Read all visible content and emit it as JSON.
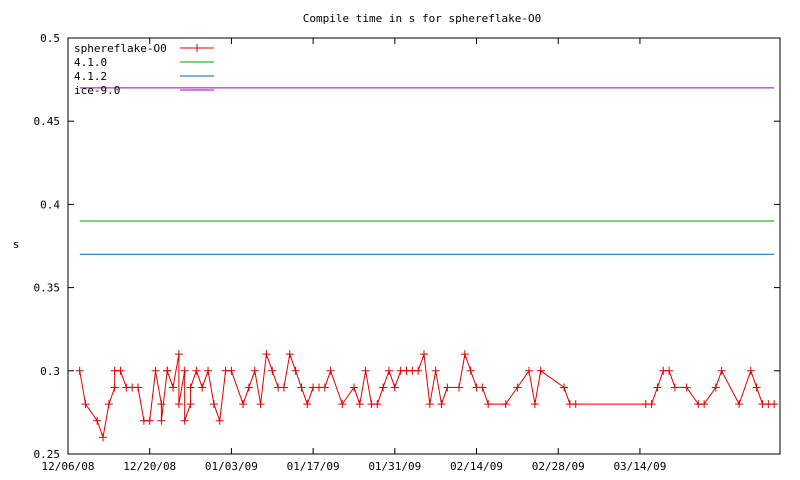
{
  "chart_data": {
    "type": "line",
    "title": "Compile time in s for sphereflake-O0",
    "xlabel": "",
    "ylabel": "s",
    "ylim": [
      0.25,
      0.5
    ],
    "xlim": [
      "2008-12-06",
      "2009-04-07"
    ],
    "x_ticks": [
      "12/06/08",
      "12/20/08",
      "01/03/09",
      "01/17/09",
      "01/31/09",
      "02/14/09",
      "02/28/09",
      "03/14/09"
    ],
    "y_ticks": [
      "0.25",
      "0.3",
      "0.35",
      "0.4",
      "0.45",
      "0.5"
    ],
    "grid": false,
    "legend_position": "top-left",
    "series": [
      {
        "name": "sphereflake-O0",
        "color": "#dd0000",
        "marker": "plus",
        "x": [
          "2008-12-08",
          "2008-12-09",
          "2008-12-11",
          "2008-12-12",
          "2008-12-13",
          "2008-12-14",
          "2008-12-14",
          "2008-12-15",
          "2008-12-16",
          "2008-12-17",
          "2008-12-18",
          "2008-12-19",
          "2008-12-20",
          "2008-12-21",
          "2008-12-22",
          "2008-12-22",
          "2008-12-23",
          "2008-12-23",
          "2008-12-24",
          "2008-12-24",
          "2008-12-25",
          "2008-12-25",
          "2008-12-26",
          "2008-12-26",
          "2008-12-27",
          "2008-12-27",
          "2008-12-28",
          "2008-12-29",
          "2008-12-30",
          "2008-12-31",
          "2009-01-01",
          "2009-01-02",
          "2009-01-03",
          "2009-01-05",
          "2009-01-06",
          "2009-01-07",
          "2009-01-08",
          "2009-01-09",
          "2009-01-10",
          "2009-01-11",
          "2009-01-12",
          "2009-01-13",
          "2009-01-14",
          "2009-01-15",
          "2009-01-16",
          "2009-01-17",
          "2009-01-18",
          "2009-01-19",
          "2009-01-20",
          "2009-01-22",
          "2009-01-24",
          "2009-01-25",
          "2009-01-26",
          "2009-01-27",
          "2009-01-28",
          "2009-01-29",
          "2009-01-30",
          "2009-01-31",
          "2009-02-01",
          "2009-02-02",
          "2009-02-03",
          "2009-02-04",
          "2009-02-05",
          "2009-02-06",
          "2009-02-07",
          "2009-02-08",
          "2009-02-09",
          "2009-02-11",
          "2009-02-12",
          "2009-02-13",
          "2009-02-14",
          "2009-02-15",
          "2009-02-16",
          "2009-02-19",
          "2009-02-21",
          "2009-02-23",
          "2009-02-24",
          "2009-02-25",
          "2009-03-01",
          "2009-03-02",
          "2009-03-03",
          "2009-03-15",
          "2009-03-16",
          "2009-03-17",
          "2009-03-18",
          "2009-03-19",
          "2009-03-20",
          "2009-03-22",
          "2009-03-24",
          "2009-03-25",
          "2009-03-27",
          "2009-03-28",
          "2009-03-31",
          "2009-04-02",
          "2009-04-03",
          "2009-04-04",
          "2009-04-05",
          "2009-04-06"
        ],
        "y": [
          0.3,
          0.28,
          0.27,
          0.26,
          0.28,
          0.29,
          0.3,
          0.3,
          0.29,
          0.29,
          0.29,
          0.27,
          0.27,
          0.3,
          0.28,
          0.27,
          0.3,
          0.3,
          0.29,
          0.29,
          0.31,
          0.28,
          0.3,
          0.27,
          0.28,
          0.29,
          0.3,
          0.29,
          0.3,
          0.28,
          0.27,
          0.3,
          0.3,
          0.28,
          0.29,
          0.3,
          0.28,
          0.31,
          0.3,
          0.29,
          0.29,
          0.31,
          0.3,
          0.29,
          0.28,
          0.29,
          0.29,
          0.29,
          0.3,
          0.28,
          0.29,
          0.28,
          0.3,
          0.28,
          0.28,
          0.29,
          0.3,
          0.29,
          0.3,
          0.3,
          0.3,
          0.3,
          0.31,
          0.28,
          0.3,
          0.28,
          0.29,
          0.29,
          0.31,
          0.3,
          0.29,
          0.29,
          0.28,
          0.28,
          0.29,
          0.3,
          0.28,
          0.3,
          0.29,
          0.28,
          0.28,
          0.28,
          0.28,
          0.29,
          0.3,
          0.3,
          0.29,
          0.29,
          0.28,
          0.28,
          0.29,
          0.3,
          0.28,
          0.3,
          0.29,
          0.28,
          0.28,
          0.28
        ]
      },
      {
        "name": "4.1.0",
        "color": "#00a000",
        "marker": "none",
        "x": [
          "2008-12-08",
          "2009-04-06"
        ],
        "y": [
          0.39,
          0.39
        ]
      },
      {
        "name": "4.1.2",
        "color": "#0066bb",
        "marker": "none",
        "x": [
          "2008-12-08",
          "2009-04-06"
        ],
        "y": [
          0.37,
          0.37
        ]
      },
      {
        "name": "ice-9.0",
        "color": "#a000c0",
        "marker": "none",
        "x": [
          "2008-12-08",
          "2009-04-06"
        ],
        "y": [
          0.47,
          0.47
        ]
      }
    ]
  }
}
